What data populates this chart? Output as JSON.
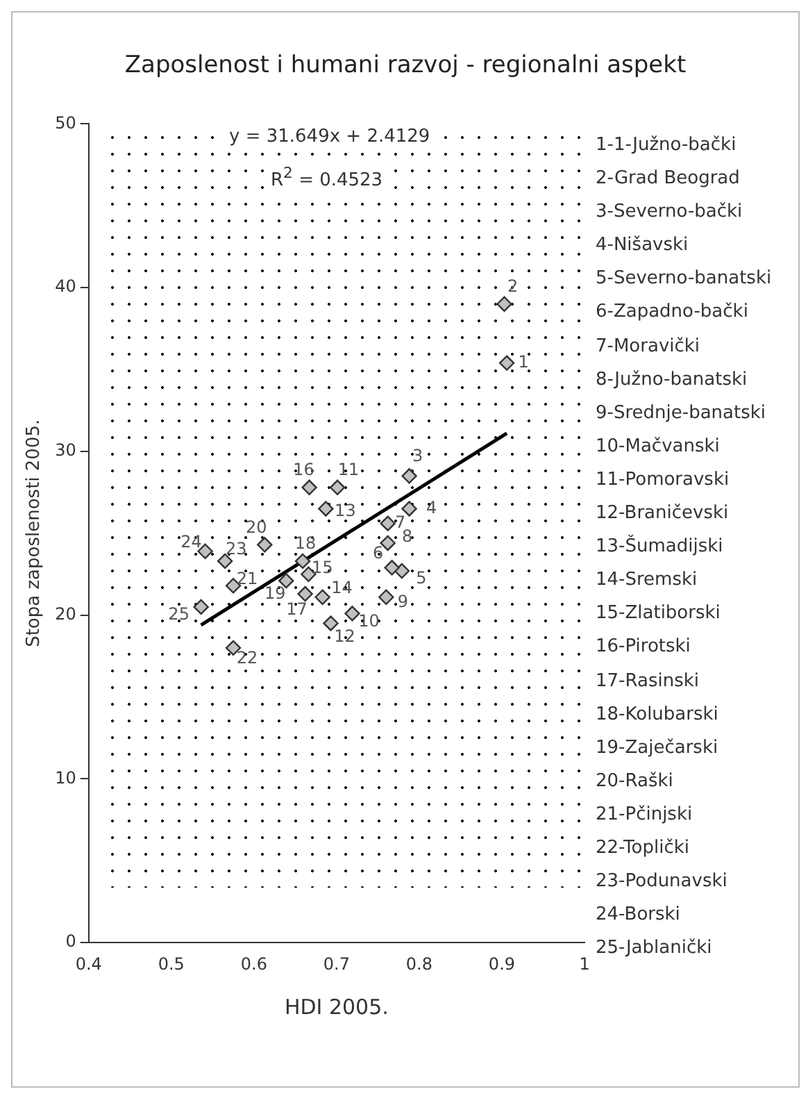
{
  "chart_data": {
    "type": "scatter",
    "title": "Zaposlenost i humani razvoj - regionalni aspekt",
    "xlabel": "HDI 2005.",
    "ylabel": "Stopa zaposlenosti 2005.",
    "xlim": [
      0.4,
      1
    ],
    "xticks": [
      0.4,
      0.5,
      0.6,
      0.7,
      0.8,
      0.9,
      1
    ],
    "ylim": [
      0,
      50
    ],
    "yticks": [
      0,
      10,
      20,
      30,
      40,
      50
    ],
    "grid": false,
    "legend": false,
    "series": [
      {
        "type": "scatter",
        "color": "#c0c0c0",
        "marker": "diamond",
        "x": [
          0.906,
          0.903,
          0.788,
          0.788,
          0.779,
          0.767,
          0.762,
          0.762,
          0.76,
          0.719,
          0.701,
          0.693,
          0.687,
          0.683,
          0.666,
          0.667,
          0.662,
          0.659,
          0.639,
          0.613,
          0.575,
          0.575,
          0.565,
          0.541,
          0.536
        ],
        "values": [
          35.4,
          39.0,
          28.5,
          26.5,
          22.7,
          22.9,
          25.6,
          24.4,
          21.1,
          20.1,
          27.8,
          19.5,
          26.5,
          21.1,
          22.5,
          27.8,
          21.3,
          23.3,
          22.1,
          24.3,
          21.8,
          18.0,
          23.3,
          23.9,
          20.5
        ]
      },
      {
        "type": "line",
        "color": "#000000",
        "marker": "none",
        "line_style": "solid",
        "x": [
          0.536,
          0.906
        ],
        "values": [
          19.4,
          31.1
        ]
      }
    ],
    "annotations": [
      "y = 31.649x + 2.4129",
      "R$^{2}$ = 0.4523",
      "1-1-Južno-bački",
      "2-Grad Beograd",
      "3-Severno-bački",
      "4-Nišavski",
      "5-Severno-banatski",
      "6-Zapadno-bački",
      "7-Moravički",
      "8-Južno-banatski",
      "9-Srednje-banatski",
      "10-Mačvanski",
      "11-Pomoravski",
      "12-Braničevski",
      "13-Šumadijski",
      "14-Sremski",
      "15-Zlatiborski",
      "16-Pirotski",
      "17-Rasinski",
      "18-Kolubarski",
      "19-Zaječarski",
      "20-Raški",
      "21-Pčinjski",
      "22-Toplički",
      "23-Podunavski",
      "24-Borski",
      "25-Jablanički",
      {
        "text": "1",
        "x": 0.906,
        "y": 35.4
      },
      {
        "text": "2",
        "x": 0.903,
        "y": 39.0
      },
      {
        "text": "3",
        "x": 0.788,
        "y": 28.5
      },
      {
        "text": "4",
        "x": 0.788,
        "y": 26.5
      },
      {
        "text": "5",
        "x": 0.779,
        "y": 22.7
      },
      {
        "text": "6",
        "x": 0.767,
        "y": 22.9
      },
      {
        "text": "7",
        "x": 0.762,
        "y": 25.6
      },
      {
        "text": "8",
        "x": 0.762,
        "y": 24.4
      },
      {
        "text": "9",
        "x": 0.76,
        "y": 21.1
      },
      {
        "text": "10",
        "x": 0.719,
        "y": 20.1
      },
      {
        "text": "11",
        "x": 0.701,
        "y": 27.8
      },
      {
        "text": "12",
        "x": 0.693,
        "y": 19.5
      },
      {
        "text": "13",
        "x": 0.687,
        "y": 26.5
      },
      {
        "text": "14",
        "x": 0.683,
        "y": 21.1
      },
      {
        "text": "15",
        "x": 0.666,
        "y": 22.5
      },
      {
        "text": "16",
        "x": 0.667,
        "y": 27.8
      },
      {
        "text": "17",
        "x": 0.662,
        "y": 21.3
      },
      {
        "text": "18",
        "x": 0.659,
        "y": 23.3
      },
      {
        "text": "19",
        "x": 0.639,
        "y": 22.1
      },
      {
        "text": "20",
        "x": 0.613,
        "y": 24.3
      },
      {
        "text": "21",
        "x": 0.575,
        "y": 21.8
      },
      {
        "text": "22",
        "x": 0.575,
        "y": 18.0
      },
      {
        "text": "23",
        "x": 0.565,
        "y": 23.3
      },
      {
        "text": "24",
        "x": 0.541,
        "y": 23.9
      },
      {
        "text": "25",
        "x": 0.536,
        "y": 20.5
      }
    ]
  }
}
